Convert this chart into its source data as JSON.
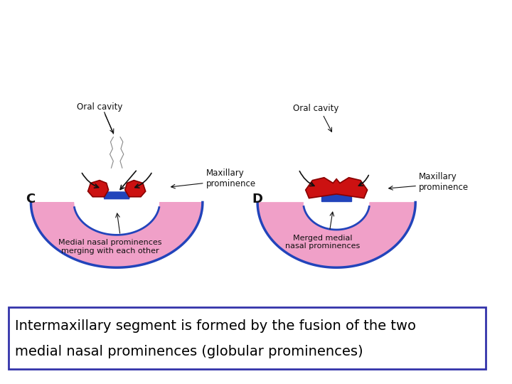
{
  "background_color": "#ffffff",
  "text_box_text_line1": "Intermaxillary segment is formed by the fusion of the two",
  "text_box_text_line2": "medial nasal prominences (globular prominences)",
  "text_box_border_color": "#3333aa",
  "text_fontsize": 14,
  "label_C": "C",
  "label_D": "D",
  "label_oral_cavity_C": "Oral cavity",
  "label_oral_cavity_D": "Oral cavity",
  "label_maxillary_C": "Maxillary\nprominence",
  "label_maxillary_D": "Maxillary\nprominence",
  "label_medial_C": "Medial nasal prominences\nmerging with each other",
  "label_merged_D": "Merged medial\nnasal prominences",
  "pink_color": "#f0a0c8",
  "pink_fill": "#f5b8d5",
  "blue_outline_color": "#2244bb",
  "red_color": "#cc1111",
  "dark_red_color": "#880000",
  "label_fontsize": 8.5,
  "small_fontsize": 8
}
